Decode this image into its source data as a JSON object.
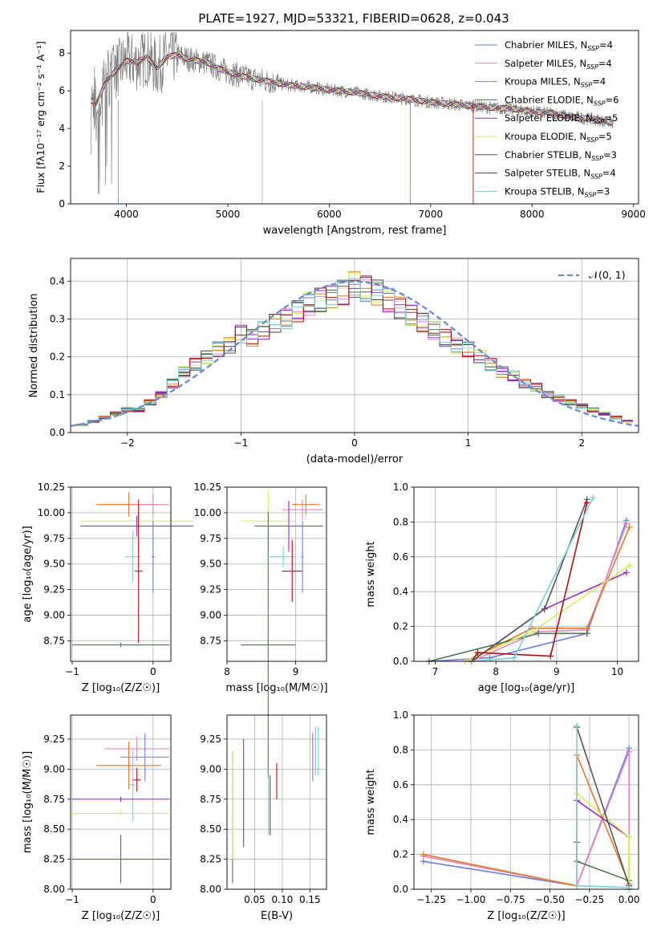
{
  "figure_title": "PLATE=1927, MJD=53321, FIBERID=0628, z=0.043",
  "colors": [
    "#6a80d8",
    "#ee82c8",
    "#e07a28",
    "#507850",
    "#9b28c8",
    "#d8ec5a",
    "#555555",
    "#aa1111",
    "#7ad0d8"
  ],
  "legend_spectrum": [
    {
      "name": "Chabrier MILES",
      "n": "4"
    },
    {
      "name": "Salpeter MILES",
      "n": "4"
    },
    {
      "name": "Kroupa MILES",
      "n": "4"
    },
    {
      "name": "Chabrier ELODIE",
      "n": "6"
    },
    {
      "name": "Salpeter ELODIE",
      "n": "5"
    },
    {
      "name": "Kroupa ELODIE",
      "n": "5"
    },
    {
      "name": "Chabrier STELIB",
      "n": "3"
    },
    {
      "name": "Salpeter STELIB",
      "n": "4"
    },
    {
      "name": "Kroupa STELIB",
      "n": "3"
    }
  ],
  "legend_n_prefix": "N",
  "legend_n_sub": "SSP",
  "panels": {
    "spectrum": {
      "xlabel": "wavelength [Angstrom, rest frame]",
      "xticks": [
        "4000",
        "5000",
        "6000",
        "7000",
        "8000",
        "9000"
      ],
      "yticks": [
        "0",
        "2",
        "4",
        "6",
        "8"
      ]
    },
    "residuals": {
      "xlabel": "(data-model)/error",
      "ylabel": "Normed distribution",
      "xticks": [
        "−2",
        "−1",
        "0",
        "1",
        "2"
      ],
      "yticks": [
        "0.0",
        "0.1",
        "0.2",
        "0.3",
        "0.4"
      ],
      "legend": "𝒩(0, 1)"
    },
    "age_z": {
      "ylabel": "age  [log₁₀(age/yr)]",
      "xlabel": "Z [log₁₀(Z/Z☉)]",
      "xticks": [
        "−1",
        "0"
      ],
      "yticks": [
        "8.75",
        "9.00",
        "9.25",
        "9.50",
        "9.75",
        "10.00",
        "10.25"
      ]
    },
    "age_mass": {
      "xlabel": "mass [log₁₀(M/M☉)]",
      "xticks": [
        "8",
        "9"
      ],
      "yticks": [
        "8.75",
        "9.00",
        "9.25",
        "9.50",
        "9.75",
        "10.00",
        "10.25"
      ]
    },
    "mw_age": {
      "ylabel": "mass weight",
      "xlabel": "age  [log₁₀(age/yr)]",
      "xticks": [
        "7",
        "8",
        "9",
        "10"
      ],
      "yticks": [
        "0.0",
        "0.2",
        "0.4",
        "0.6",
        "0.8",
        "1.0"
      ]
    },
    "mass_z": {
      "ylabel": "mass [log₁₀(M/M☉)]",
      "xlabel": "Z [log₁₀(Z/Z☉)]",
      "xticks": [
        "−1",
        "0"
      ],
      "yticks": [
        "8.00",
        "8.25",
        "8.50",
        "8.75",
        "9.00",
        "9.25"
      ]
    },
    "mass_ebv": {
      "xlabel": "E(B-V)",
      "xticks": [
        "0.05",
        "0.10",
        "0.15"
      ],
      "yticks": [
        "8.00",
        "8.25",
        "8.50",
        "8.75",
        "9.00",
        "9.25"
      ]
    },
    "mw_z": {
      "ylabel": "mass weight",
      "xlabel": "Z [log₁₀(Z/Z☉)]",
      "xticks": [
        "−1.25",
        "−1.00",
        "−0.75",
        "−0.50",
        "−0.25",
        "0.00"
      ],
      "yticks": [
        "0.0",
        "0.2",
        "0.4",
        "0.6",
        "0.8",
        "1.0"
      ]
    }
  },
  "chart_data": [
    {
      "type": "line",
      "id": "spectrum",
      "xlabel": "wavelength [Angstrom, rest frame]",
      "ylabel": "Flux [f_λ 10^-17 erg cm^-2 s^-1 A^-1]",
      "xlim": [
        3450,
        9050
      ],
      "ylim": [
        0,
        9.2
      ],
      "x": [
        3650,
        3700,
        3800,
        3900,
        4000,
        4100,
        4200,
        4300,
        4400,
        4500,
        4600,
        4700,
        4800,
        4900,
        5000,
        5200,
        5400,
        5600,
        5800,
        6000,
        6200,
        6400,
        6600,
        6800,
        7000,
        7200,
        7400,
        7600,
        7800,
        8000,
        8200,
        8400,
        8600,
        8800
      ],
      "y": [
        5.5,
        5.3,
        6.5,
        7.1,
        7.6,
        7.5,
        7.8,
        7.2,
        7.8,
        7.9,
        7.7,
        7.6,
        7.5,
        7.2,
        7.0,
        6.7,
        6.5,
        6.3,
        6.2,
        6.05,
        5.95,
        5.8,
        5.65,
        5.55,
        5.4,
        5.3,
        5.2,
        5.1,
        5.05,
        4.9,
        4.8,
        4.6,
        4.5,
        4.3
      ]
    },
    {
      "type": "line",
      "id": "residuals",
      "xlabel": "(data-model)/error",
      "ylabel": "Normed distribution",
      "xlim": [
        -2.5,
        2.5
      ],
      "ylim": [
        0,
        0.46
      ],
      "legend": "𝒩(0, 1)",
      "bins": [
        -2.4,
        -2.3,
        -2.2,
        -2.1,
        -2.0,
        -1.9,
        -1.8,
        -1.7,
        -1.6,
        -1.5,
        -1.4,
        -1.3,
        -1.2,
        -1.1,
        -1.0,
        -0.9,
        -0.8,
        -0.7,
        -0.6,
        -0.5,
        -0.4,
        -0.3,
        -0.2,
        -0.1,
        0.0,
        0.1,
        0.2,
        0.3,
        0.4,
        0.5,
        0.6,
        0.7,
        0.8,
        0.9,
        1.0,
        1.1,
        1.2,
        1.3,
        1.4,
        1.5,
        1.6,
        1.7,
        1.8,
        1.9,
        2.0,
        2.1,
        2.2,
        2.3,
        2.4
      ],
      "hist": [
        0.02,
        0.03,
        0.04,
        0.05,
        0.06,
        0.06,
        0.08,
        0.1,
        0.13,
        0.16,
        0.18,
        0.2,
        0.22,
        0.23,
        0.26,
        0.25,
        0.27,
        0.29,
        0.3,
        0.32,
        0.34,
        0.35,
        0.36,
        0.37,
        0.39,
        0.38,
        0.37,
        0.35,
        0.33,
        0.31,
        0.29,
        0.27,
        0.25,
        0.23,
        0.22,
        0.2,
        0.18,
        0.16,
        0.15,
        0.13,
        0.12,
        0.1,
        0.09,
        0.08,
        0.07,
        0.06,
        0.05,
        0.04,
        0.03
      ]
    },
    {
      "type": "scatter",
      "id": "age_z",
      "xlabel": "Z [log₁₀(Z/Z☉)]",
      "ylabel": "age  [log₁₀(age/yr)]",
      "xlim": [
        -1.02,
        0.22
      ],
      "ylim": [
        8.55,
        10.25
      ],
      "points": [
        {
          "x": -0.3,
          "y": 10.08,
          "xe": 0.4,
          "ye": 0.12,
          "c": 2
        },
        {
          "x": 0.0,
          "y": 10.08,
          "xe": 0.2,
          "ye": 0.1,
          "c": 1
        },
        {
          "x": -0.2,
          "y": 9.92,
          "xe": 0.7,
          "ye": 0.05,
          "c": 5
        },
        {
          "x": -0.2,
          "y": 9.87,
          "xe": 0.7,
          "ye": 0.1,
          "c": 4
        },
        {
          "x": -0.25,
          "y": 9.57,
          "xe": 0.1,
          "ye": 0.25,
          "c": 8
        },
        {
          "x": -0.18,
          "y": 9.43,
          "xe": 0.05,
          "ye": 0.7,
          "c": 7
        },
        {
          "x": 0.0,
          "y": 9.57,
          "xe": 0.02,
          "ye": 0.35,
          "c": 0
        },
        {
          "x": -0.4,
          "y": 8.71,
          "xe": 0.6,
          "ye": 0.02,
          "c": 3
        }
      ]
    },
    {
      "type": "scatter",
      "id": "age_mass",
      "xlabel": "mass [log₁₀(M/M☉)]",
      "xlim": [
        8.0,
        9.45
      ],
      "ylim": [
        8.55,
        10.25
      ],
      "points": [
        {
          "x": 9.15,
          "y": 10.08,
          "xe": 0.2,
          "ye": 0.1,
          "c": 2
        },
        {
          "x": 9.1,
          "y": 10.03,
          "xe": 0.3,
          "ye": 0.1,
          "c": 1
        },
        {
          "x": 8.6,
          "y": 9.92,
          "xe": 0.4,
          "ye": 0.3,
          "c": 5
        },
        {
          "x": 8.9,
          "y": 9.87,
          "xe": 0.5,
          "ye": 0.25,
          "c": 4
        },
        {
          "x": 8.82,
          "y": 9.57,
          "xe": 0.2,
          "ye": 0.1,
          "c": 8
        },
        {
          "x": 8.95,
          "y": 9.43,
          "xe": 0.15,
          "ye": 0.3,
          "c": 7
        },
        {
          "x": 9.1,
          "y": 9.57,
          "xe": 0.02,
          "ye": 0.35,
          "c": 0
        },
        {
          "x": 8.6,
          "y": 8.71,
          "xe": 0.4,
          "ye": 1.3,
          "c": 3
        }
      ]
    },
    {
      "type": "line",
      "id": "mw_age",
      "xlabel": "age  [log₁₀(age/yr)]",
      "ylabel": "mass weight",
      "xlim": [
        6.65,
        10.35
      ],
      "ylim": [
        0,
        1.0
      ],
      "series": [
        {
          "c": 0,
          "x": [
            6.9,
            7.9,
            9.5,
            10.15
          ],
          "y": [
            0.0,
            0.02,
            0.16,
            0.81
          ]
        },
        {
          "c": 1,
          "x": [
            7.6,
            8.7,
            9.5,
            10.15
          ],
          "y": [
            0.0,
            0.17,
            0.18,
            0.79
          ]
        },
        {
          "c": 2,
          "x": [
            7.5,
            8.6,
            9.5,
            10.2
          ],
          "y": [
            0.0,
            0.19,
            0.19,
            0.77
          ]
        },
        {
          "c": 3,
          "x": [
            6.9,
            8.7,
            9.5
          ],
          "y": [
            0.0,
            0.16,
            0.16
          ]
        },
        {
          "c": 4,
          "x": [
            7.6,
            8.8,
            10.15
          ],
          "y": [
            0.0,
            0.3,
            0.51
          ]
        },
        {
          "c": 5,
          "x": [
            7.5,
            8.6,
            10.2
          ],
          "y": [
            0.0,
            0.17,
            0.55
          ]
        },
        {
          "c": 6,
          "x": [
            7.6,
            8.8,
            9.5
          ],
          "y": [
            0.0,
            0.3,
            0.93
          ]
        },
        {
          "c": 7,
          "x": [
            7.6,
            7.7,
            8.9,
            9.5
          ],
          "y": [
            0.0,
            0.05,
            0.03,
            0.91
          ]
        },
        {
          "c": 8,
          "x": [
            7.6,
            8.3,
            9.6
          ],
          "y": [
            0.0,
            0.02,
            0.94
          ]
        }
      ]
    },
    {
      "type": "scatter",
      "id": "mass_z",
      "xlabel": "Z [log₁₀(Z/Z☉)]",
      "ylabel": "mass [log₁₀(M/M☉)]",
      "xlim": [
        -1.02,
        0.22
      ],
      "ylim": [
        8.0,
        9.45
      ],
      "points": [
        {
          "x": -0.2,
          "y": 9.17,
          "xe": 0.4,
          "ye": 0.1,
          "c": 1
        },
        {
          "x": -0.1,
          "y": 9.1,
          "xe": 0.3,
          "ye": 0.2,
          "c": 0
        },
        {
          "x": -0.3,
          "y": 9.03,
          "xe": 0.4,
          "ye": 0.2,
          "c": 2
        },
        {
          "x": -0.2,
          "y": 8.91,
          "xe": 0.05,
          "ye": 0.1,
          "c": 7
        },
        {
          "x": -0.25,
          "y": 8.87,
          "xe": 0.05,
          "ye": 0.3,
          "c": 8
        },
        {
          "x": -0.4,
          "y": 8.75,
          "xe": 0.6,
          "ye": 0.02,
          "c": 4
        },
        {
          "x": -0.4,
          "y": 8.63,
          "xe": 0.6,
          "ye": 0.02,
          "c": 5
        },
        {
          "x": -0.4,
          "y": 8.25,
          "xe": 0.6,
          "ye": 0.2,
          "c": 3
        }
      ]
    },
    {
      "type": "scatter",
      "id": "mass_ebv",
      "xlabel": "E(B-V)",
      "xlim": [
        0.0,
        0.18
      ],
      "ylim": [
        8.0,
        9.45
      ],
      "points": [
        {
          "x": 0.01,
          "y": 8.6,
          "xe": 0.0,
          "ye": 0.55,
          "c": 3
        },
        {
          "x": 0.01,
          "y": 8.7,
          "xe": 0.0,
          "ye": 0.45,
          "c": 5
        },
        {
          "x": 0.03,
          "y": 8.8,
          "xe": 0.0,
          "ye": 0.45,
          "c": 4
        },
        {
          "x": 0.075,
          "y": 8.7,
          "xe": 0.0,
          "ye": 0.25,
          "c": 8
        },
        {
          "x": 0.078,
          "y": 8.7,
          "xe": 0.0,
          "ye": 0.25,
          "c": 6
        },
        {
          "x": 0.09,
          "y": 8.9,
          "xe": 0.0,
          "ye": 0.15,
          "c": 7
        },
        {
          "x": 0.155,
          "y": 9.1,
          "xe": 0.0,
          "ye": 0.2,
          "c": 0
        },
        {
          "x": 0.16,
          "y": 9.15,
          "xe": 0.0,
          "ye": 0.2,
          "c": 1
        },
        {
          "x": 0.165,
          "y": 9.15,
          "xe": 0.0,
          "ye": 0.2,
          "c": 8
        }
      ]
    },
    {
      "type": "line",
      "id": "mw_z",
      "xlabel": "Z [log₁₀(Z/Z☉)]",
      "ylabel": "mass weight",
      "xlim": [
        -1.36,
        0.06
      ],
      "ylim": [
        0,
        1.0
      ],
      "series": [
        {
          "c": 0,
          "x": [
            -1.3,
            -0.33,
            0.0
          ],
          "y": [
            0.16,
            0.02,
            0.81
          ]
        },
        {
          "c": 1,
          "x": [
            -1.3,
            -0.33,
            0.0,
            0.0
          ],
          "y": [
            0.19,
            0.02,
            0.79,
            0.0
          ]
        },
        {
          "c": 2,
          "x": [
            -1.3,
            -0.33,
            -0.33,
            0.0
          ],
          "y": [
            0.2,
            0.02,
            0.77,
            0.03
          ]
        },
        {
          "c": 3,
          "x": [
            -0.33,
            -0.33,
            0.0
          ],
          "y": [
            0.27,
            0.16,
            0.05
          ]
        },
        {
          "c": 4,
          "x": [
            -0.33,
            0.0,
            0.0
          ],
          "y": [
            0.51,
            0.3,
            0.0
          ]
        },
        {
          "c": 5,
          "x": [
            -0.33,
            0.0,
            0.0
          ],
          "y": [
            0.55,
            0.3,
            0.0
          ]
        },
        {
          "c": 6,
          "x": [
            -0.33,
            0.0
          ],
          "y": [
            0.93,
            0.02
          ]
        },
        {
          "c": 8,
          "x": [
            -0.33,
            -0.33,
            0.0
          ],
          "y": [
            0.94,
            0.02,
            0.01
          ]
        }
      ]
    }
  ]
}
